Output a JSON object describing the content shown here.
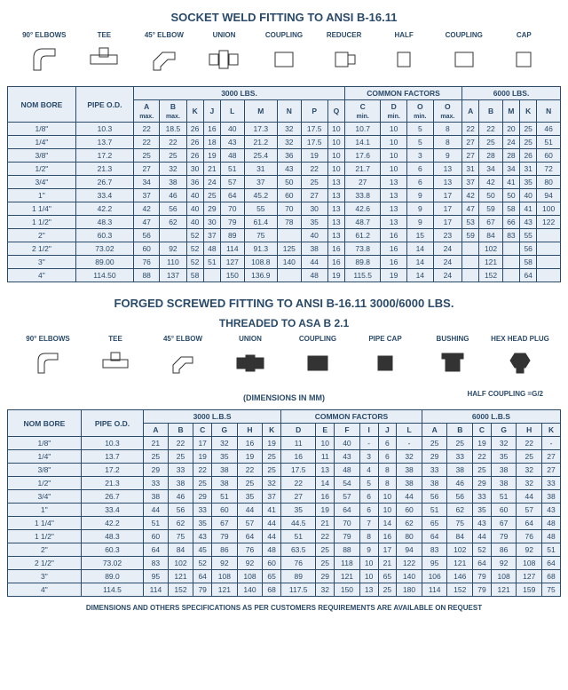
{
  "title1": "SOCKET WELD FITTING TO ANSI B-16.11",
  "diagrams1": [
    "90° ELBOWS",
    "TEE",
    "45° ELBOW",
    "UNION",
    "COUPLING",
    "REDUCER",
    "HALF",
    "COUPLING",
    "CAP"
  ],
  "table1": {
    "group_headers": [
      "",
      "",
      "3000 LBS.",
      "COMMON FACTORS",
      "6000 LBS."
    ],
    "sub_headers": [
      "NOM\nBORE",
      "PIPE\nO.D.",
      "A max.",
      "B max.",
      "K",
      "J",
      "L",
      "M",
      "N",
      "P",
      "Q",
      "C min.",
      "D min.",
      "O min.",
      "O max.",
      "A",
      "B",
      "M",
      "K",
      "N"
    ],
    "rows": [
      [
        "1/8\"",
        "10.3",
        "22",
        "18.5",
        "26",
        "16",
        "40",
        "17.3",
        "32",
        "17.5",
        "10",
        "10.7",
        "10",
        "5",
        "8",
        "22",
        "22",
        "20",
        "25",
        "46"
      ],
      [
        "1/4\"",
        "13.7",
        "22",
        "22",
        "26",
        "18",
        "43",
        "21.2",
        "32",
        "17.5",
        "10",
        "14.1",
        "10",
        "5",
        "8",
        "27",
        "25",
        "24",
        "25",
        "51"
      ],
      [
        "3/8\"",
        "17.2",
        "25",
        "25",
        "26",
        "19",
        "48",
        "25.4",
        "36",
        "19",
        "10",
        "17.6",
        "10",
        "3",
        "9",
        "27",
        "28",
        "28",
        "26",
        "60"
      ],
      [
        "1/2\"",
        "21.3",
        "27",
        "32",
        "30",
        "21",
        "51",
        "31",
        "43",
        "22",
        "10",
        "21.7",
        "10",
        "6",
        "13",
        "31",
        "34",
        "34",
        "31",
        "72"
      ],
      [
        "3/4\"",
        "26.7",
        "34",
        "38",
        "36",
        "24",
        "57",
        "37",
        "50",
        "25",
        "13",
        "27",
        "13",
        "6",
        "13",
        "37",
        "42",
        "41",
        "35",
        "80"
      ],
      [
        "1\"",
        "33.4",
        "37",
        "46",
        "40",
        "25",
        "64",
        "45.2",
        "60",
        "27",
        "13",
        "33.8",
        "13",
        "9",
        "17",
        "42",
        "50",
        "50",
        "40",
        "94"
      ],
      [
        "1 1/4\"",
        "42.2",
        "42",
        "56",
        "40",
        "29",
        "70",
        "55",
        "70",
        "30",
        "13",
        "42.6",
        "13",
        "9",
        "17",
        "47",
        "59",
        "58",
        "41",
        "100"
      ],
      [
        "1 1/2\"",
        "48.3",
        "47",
        "62",
        "40",
        "30",
        "79",
        "61.4",
        "78",
        "35",
        "13",
        "48.7",
        "13",
        "9",
        "17",
        "53",
        "67",
        "66",
        "43",
        "122"
      ],
      [
        "2\"",
        "60.3",
        "56",
        "",
        "52",
        "37",
        "89",
        "75",
        "",
        "40",
        "13",
        "61.2",
        "16",
        "15",
        "23",
        "59",
        "84",
        "83",
        "55",
        ""
      ],
      [
        "2 1/2\"",
        "73.02",
        "60",
        "92",
        "52",
        "48",
        "114",
        "91.3",
        "125",
        "38",
        "16",
        "73.8",
        "16",
        "14",
        "24",
        "",
        "102",
        "",
        "56",
        ""
      ],
      [
        "3\"",
        "89.00",
        "76",
        "110",
        "52",
        "51",
        "127",
        "108.8",
        "140",
        "44",
        "16",
        "89.8",
        "16",
        "14",
        "24",
        "",
        "121",
        "",
        "58",
        ""
      ],
      [
        "4\"",
        "114.50",
        "88",
        "137",
        "58",
        "",
        "150",
        "136.9",
        "",
        "48",
        "19",
        "115.5",
        "19",
        "14",
        "24",
        "",
        "152",
        "",
        "64",
        ""
      ]
    ]
  },
  "title2": "FORGED SCREWED FITTING TO ANSI B-16.11 3000/6000 LBS.",
  "title2b": "THREADED TO ASA B 2.1",
  "diagrams2": [
    "90° ELBOWS",
    "TEE",
    "45° ELBOW",
    "UNION",
    "COUPLING",
    "PIPE CAP",
    "BUSHING",
    "HEX HEAD PLUG"
  ],
  "dim_note": "(DIMENSIONS IN MM)",
  "half_coupling_note": "HALF COUPLING =G/2",
  "table2": {
    "group_headers": [
      "",
      "",
      "3000 L.B.S",
      "COMMON FACTORS",
      "6000 L.B.S"
    ],
    "sub_headers": [
      "NOM\nBORE",
      "PIPE\nO.D.",
      "A",
      "B",
      "C",
      "G",
      "H",
      "K",
      "D",
      "E",
      "F",
      "I",
      "J",
      "L",
      "A",
      "B",
      "C",
      "G",
      "H",
      "K"
    ],
    "rows": [
      [
        "1/8\"",
        "10.3",
        "21",
        "22",
        "17",
        "32",
        "16",
        "19",
        "11",
        "10",
        "40",
        "-",
        "6",
        "-",
        "25",
        "25",
        "19",
        "32",
        "22",
        "-"
      ],
      [
        "1/4\"",
        "13.7",
        "25",
        "25",
        "19",
        "35",
        "19",
        "25",
        "16",
        "11",
        "43",
        "3",
        "6",
        "32",
        "29",
        "33",
        "22",
        "35",
        "25",
        "27"
      ],
      [
        "3/8\"",
        "17.2",
        "29",
        "33",
        "22",
        "38",
        "22",
        "25",
        "17.5",
        "13",
        "48",
        "4",
        "8",
        "38",
        "33",
        "38",
        "25",
        "38",
        "32",
        "27"
      ],
      [
        "1/2\"",
        "21.3",
        "33",
        "38",
        "25",
        "38",
        "25",
        "32",
        "22",
        "14",
        "54",
        "5",
        "8",
        "38",
        "38",
        "46",
        "29",
        "38",
        "32",
        "33"
      ],
      [
        "3/4\"",
        "26.7",
        "38",
        "46",
        "29",
        "51",
        "35",
        "37",
        "27",
        "16",
        "57",
        "6",
        "10",
        "44",
        "56",
        "56",
        "33",
        "51",
        "44",
        "38"
      ],
      [
        "1\"",
        "33.4",
        "44",
        "56",
        "33",
        "60",
        "44",
        "41",
        "35",
        "19",
        "64",
        "6",
        "10",
        "60",
        "51",
        "62",
        "35",
        "60",
        "57",
        "43"
      ],
      [
        "1 1/4\"",
        "42.2",
        "51",
        "62",
        "35",
        "67",
        "57",
        "44",
        "44.5",
        "21",
        "70",
        "7",
        "14",
        "62",
        "65",
        "75",
        "43",
        "67",
        "64",
        "48"
      ],
      [
        "1 1/2\"",
        "48.3",
        "60",
        "75",
        "43",
        "79",
        "64",
        "44",
        "51",
        "22",
        "79",
        "8",
        "16",
        "80",
        "64",
        "84",
        "44",
        "79",
        "76",
        "48"
      ],
      [
        "2\"",
        "60.3",
        "64",
        "84",
        "45",
        "86",
        "76",
        "48",
        "63.5",
        "25",
        "88",
        "9",
        "17",
        "94",
        "83",
        "102",
        "52",
        "86",
        "92",
        "51"
      ],
      [
        "2 1/2\"",
        "73.02",
        "83",
        "102",
        "52",
        "92",
        "92",
        "60",
        "76",
        "25",
        "118",
        "10",
        "21",
        "122",
        "95",
        "121",
        "64",
        "92",
        "108",
        "64"
      ],
      [
        "3\"",
        "89.0",
        "95",
        "121",
        "64",
        "108",
        "108",
        "65",
        "89",
        "29",
        "121",
        "10",
        "65",
        "140",
        "106",
        "146",
        "79",
        "108",
        "127",
        "68"
      ],
      [
        "4\"",
        "114.5",
        "114",
        "152",
        "79",
        "121",
        "140",
        "68",
        "117.5",
        "32",
        "150",
        "13",
        "25",
        "180",
        "114",
        "152",
        "79",
        "121",
        "159",
        "75"
      ]
    ]
  },
  "footer": "DIMENSIONS AND OTHERS SPECIFICATIONS AS PER CUSTOMERS REQUIREMENTS ARE AVAILABLE ON REQUEST"
}
